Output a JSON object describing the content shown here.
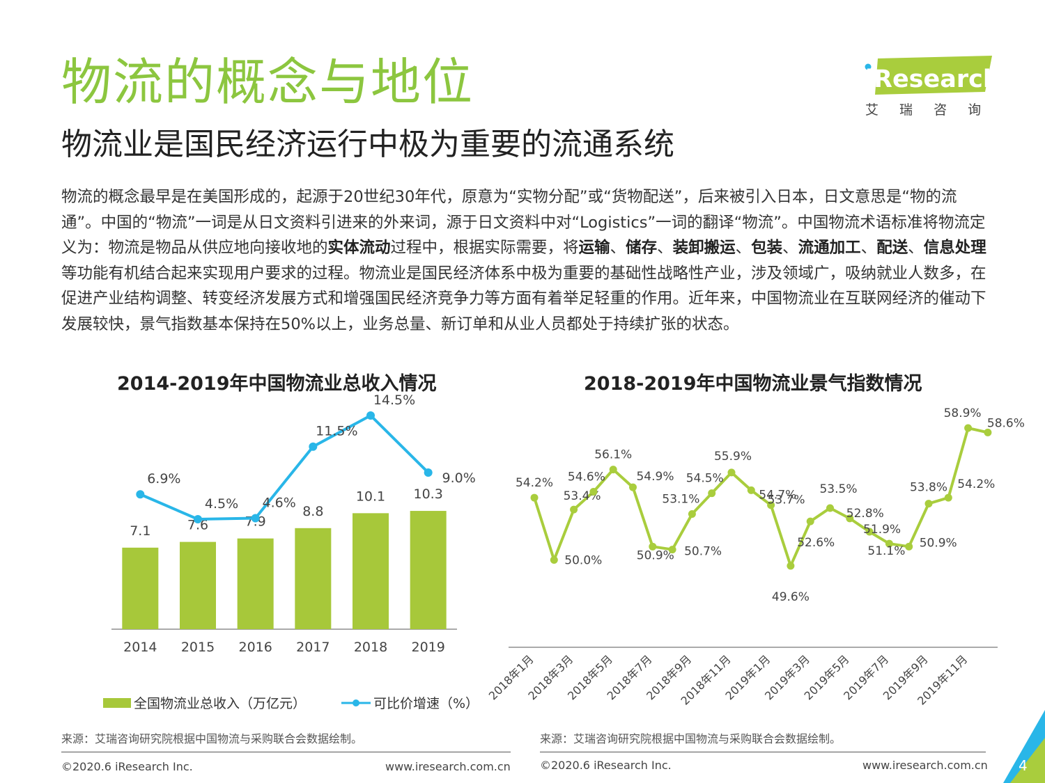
{
  "header": {
    "title": "物流的概念与地位",
    "subtitle": "物流业是国民经济运行中极为重要的流通系统"
  },
  "logo": {
    "brand": "iResearch",
    "cn": "艾 瑞 咨 询"
  },
  "paragraph": [
    {
      "t": "物流的概念最早是在美国形成的，起源于20世纪30年代，原意为“实物分配”或“货物配送”，后来被引入日本，日文意思是“物的流通”。中国的“物流”一词是从日文资料引进来的外来词，源于日文资料中对“Logistics”一词的翻译“物流”。中国物流术语标准将物流定义为：物流是物品从供应地向接收地的",
      "b": false
    },
    {
      "t": "实体流动",
      "b": true
    },
    {
      "t": "过程中，根据实际需要，将",
      "b": false
    },
    {
      "t": "运输",
      "b": true
    },
    {
      "t": "、",
      "b": false
    },
    {
      "t": "储存",
      "b": true
    },
    {
      "t": "、",
      "b": false
    },
    {
      "t": "装卸搬运",
      "b": true
    },
    {
      "t": "、",
      "b": false
    },
    {
      "t": "包装",
      "b": true
    },
    {
      "t": "、",
      "b": false
    },
    {
      "t": "流通加工",
      "b": true
    },
    {
      "t": "、",
      "b": false
    },
    {
      "t": "配送",
      "b": true
    },
    {
      "t": "、",
      "b": false
    },
    {
      "t": "信息处理",
      "b": true
    },
    {
      "t": "等功能有机结合起来实现用户要求的过程。物流业是国民经济体系中极为重要的基础性战略性产业，涉及领域广，吸纳就业人数多，在促进产业结构调整、转变经济发展方式和增强国民经济竞争力等方面有着举足轻重的作用。近年来，中国物流业在互联网经济的催动下发展较快，景气指数基本保持在50%以上，业务总量、新订单和从业人员都处于持续扩张的状态。",
      "b": false
    }
  ],
  "chart_left_title": "2014-2019年中国物流业总收入情况",
  "chart_right_title": "2018-2019年中国物流业景气指数情况",
  "legend": {
    "bar": "全国物流业总收入（万亿元）",
    "line": "可比价增速（%）"
  },
  "source_left": "来源：艾瑞咨询研究院根据中国物流与采购联合会数据绘制。",
  "source_right": "来源：艾瑞咨询研究院根据中国物流与采购联合会数据绘制。",
  "footer": {
    "copyright": "©2020.6 iResearch Inc.",
    "url": "www.iresearch.com.cn",
    "page": "4"
  },
  "colors": {
    "green": "#a7c83a",
    "cyan": "#29b6e8",
    "title_green": "#8cc63f",
    "line_green": "#a9cd3d"
  },
  "chart_data": [
    {
      "type": "bar+line",
      "title": "2014-2019年中国物流业总收入情况",
      "categories": [
        "2014",
        "2015",
        "2016",
        "2017",
        "2018",
        "2019"
      ],
      "series": [
        {
          "name": "全国物流业总收入（万亿元）",
          "type": "bar",
          "values": [
            7.1,
            7.6,
            7.9,
            8.8,
            10.1,
            10.3
          ],
          "labels": [
            "7.1",
            "7.6",
            "7.9",
            "8.8",
            "10.1",
            "10.3"
          ]
        },
        {
          "name": "可比价增速（%）",
          "type": "line",
          "values": [
            6.9,
            4.5,
            4.6,
            11.5,
            14.5,
            9.0
          ],
          "labels": [
            "6.9%",
            "4.5%",
            "4.6%",
            "11.5%",
            "14.5%",
            "9.0%"
          ]
        }
      ],
      "bar_ylim": [
        0,
        12
      ],
      "line_ylim": [
        0,
        16
      ]
    },
    {
      "type": "line",
      "title": "2018-2019年中国物流业景气指数情况",
      "x_ticks": [
        "2018年1月",
        "2018年3月",
        "2018年5月",
        "2018年7月",
        "2018年9月",
        "2018年11月",
        "2019年1月",
        "2019年3月",
        "2019年5月",
        "2019年7月",
        "2019年9月",
        "2019年11月"
      ],
      "values": [
        54.2,
        50.0,
        53.4,
        54.6,
        56.1,
        54.9,
        50.9,
        50.7,
        53.1,
        54.5,
        55.9,
        54.7,
        53.7,
        49.6,
        52.6,
        53.5,
        52.8,
        51.9,
        51.1,
        50.9,
        53.8,
        54.2,
        58.9,
        58.6
      ],
      "labels": [
        "54.2%",
        "50.0%",
        "53.4%",
        "54.6%",
        "56.1%",
        "54.9%",
        "50.9%",
        "50.7%",
        "53.1%",
        "54.5%",
        "55.9%",
        "54.7%",
        "53.7%",
        "49.6%",
        "52.6%",
        "53.5%",
        "52.8%",
        "51.9%",
        "51.1%",
        "50.9%",
        "53.8%",
        "54.2%",
        "58.9%",
        "58.6%"
      ],
      "ylim": [
        49.6,
        58.9
      ]
    }
  ]
}
